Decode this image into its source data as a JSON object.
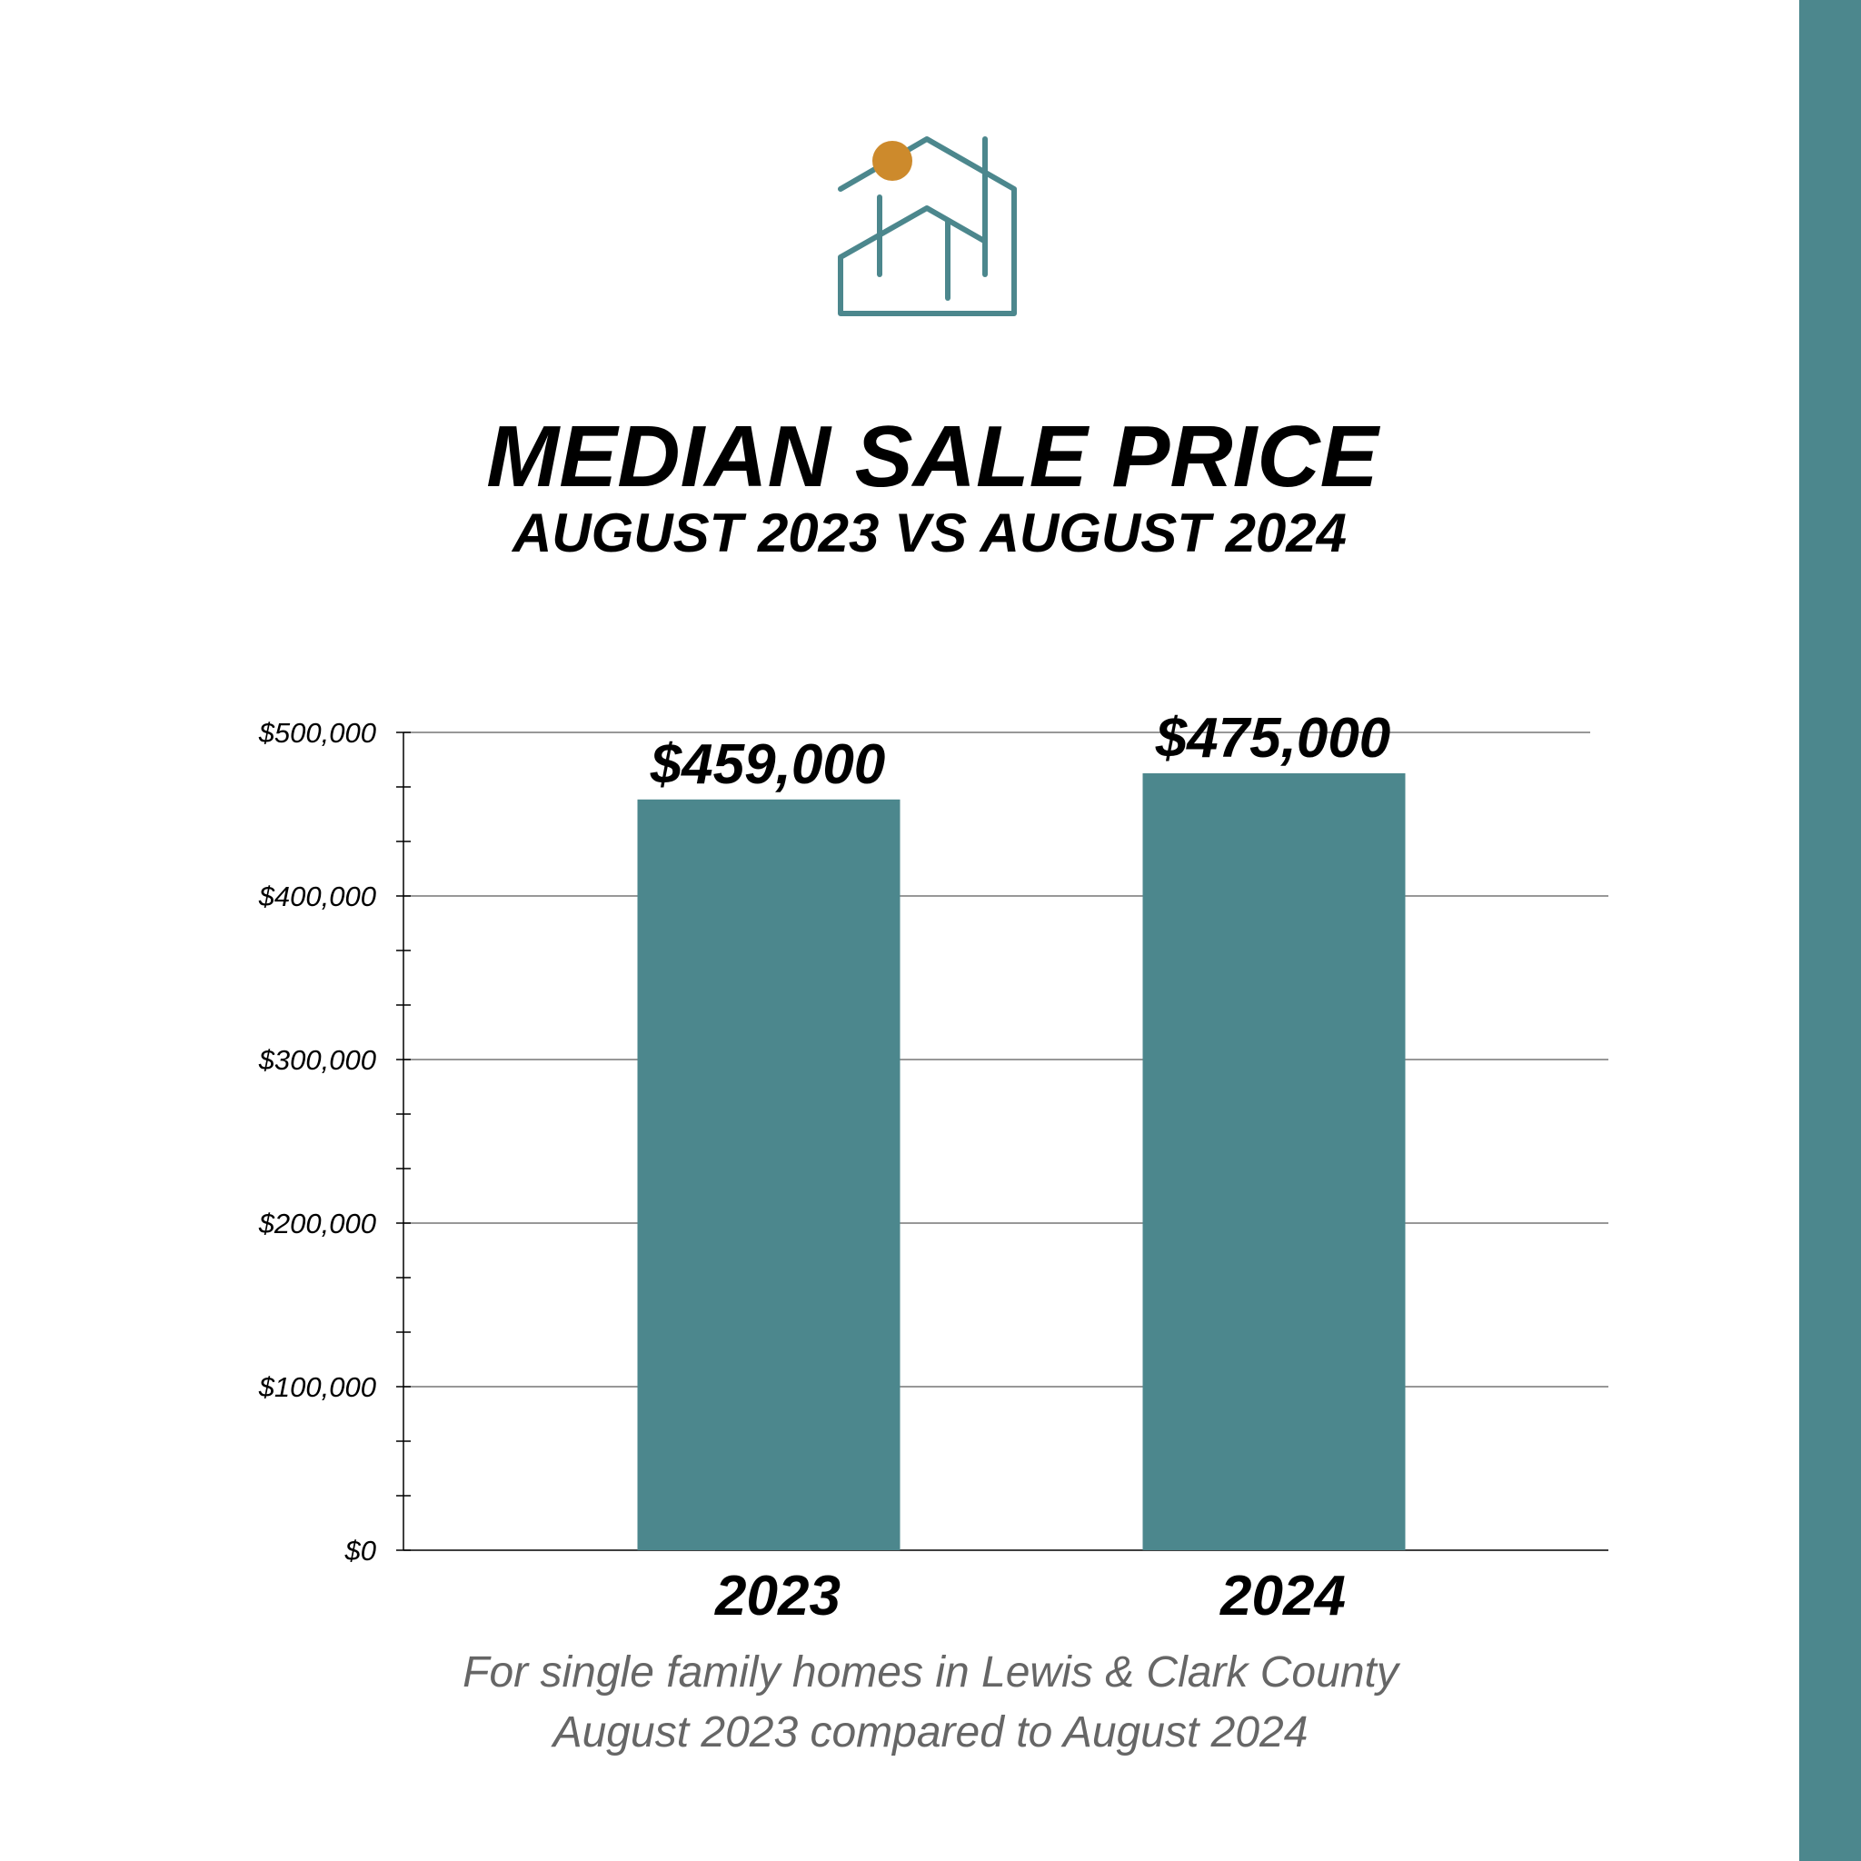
{
  "colors": {
    "bar": "#4c878d",
    "accent": "#cd8a2c",
    "side_bar": "#4c878d",
    "footnote": "#666666"
  },
  "logo": {
    "icon": "house-sun-logo-icon"
  },
  "chart_data": {
    "type": "bar",
    "title": "MEDIAN SALE PRICE",
    "subtitle": "AUGUST 2023 VS AUGUST 2024",
    "categories": [
      "2023",
      "2024"
    ],
    "values": [
      459000,
      475000
    ],
    "data_labels": [
      "$459,000",
      "$475,000"
    ],
    "xlabel": "",
    "ylabel": "",
    "ylim": [
      0,
      500000
    ],
    "yticks": [
      0,
      100000,
      200000,
      300000,
      400000,
      500000
    ],
    "ytick_labels": [
      "$0",
      "$100,000",
      "$200,000",
      "$300,000",
      "$400,000",
      "$500,000"
    ],
    "minor_tick_step": 33333.33,
    "grid": true,
    "legend": "none"
  },
  "footnote": {
    "line1": "For single family homes in Lewis & Clark County",
    "line2": "August 2023 compared to August 2024"
  }
}
